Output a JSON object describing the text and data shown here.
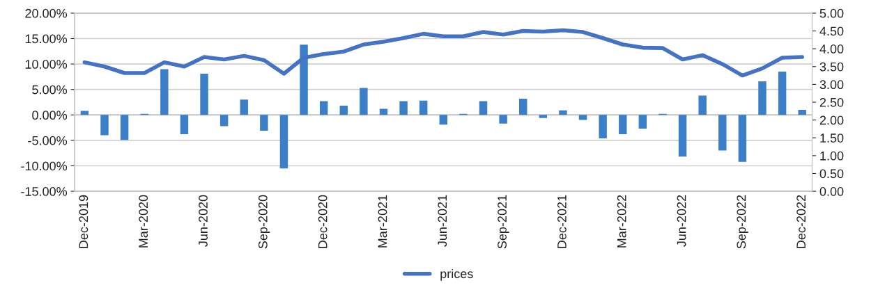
{
  "chart_data": {
    "type": "bar",
    "categories": [
      "Dec-2019",
      null,
      null,
      "Mar-2020",
      null,
      null,
      "Jun-2020",
      null,
      null,
      "Sep-2020",
      null,
      null,
      "Dec-2020",
      null,
      null,
      "Mar-2021",
      null,
      null,
      "Jun-2021",
      null,
      null,
      "Sep-2021",
      null,
      null,
      "Dec-2021",
      null,
      null,
      "Mar-2022",
      null,
      null,
      "Jun-2022",
      null,
      null,
      "Sep-2022",
      null,
      null,
      "Dec-2022"
    ],
    "series": [
      {
        "color": "#3a7fc8",
        "values": [
          0.8,
          -4.0,
          -4.9,
          0.2,
          9.0,
          -3.8,
          8.1,
          -2.2,
          3.0,
          -3.1,
          -10.5,
          13.8,
          2.7,
          1.8,
          5.3,
          1.2,
          2.7,
          2.8,
          -1.9,
          0.2,
          2.7,
          -1.7,
          3.2,
          -0.6,
          0.9,
          -1.0,
          -4.6,
          -3.8,
          -2.7,
          0.2,
          -8.2,
          3.8,
          -7.0,
          -9.2,
          6.6,
          8.5,
          1.0
        ]
      },
      {
        "type": "line",
        "name": "prices",
        "color": "#4472c4",
        "axis": "y2",
        "values": [
          3.62,
          3.5,
          3.32,
          3.32,
          3.62,
          3.5,
          3.77,
          3.7,
          3.8,
          3.68,
          3.3,
          3.75,
          3.85,
          3.92,
          4.12,
          4.2,
          4.3,
          4.42,
          4.35,
          4.35,
          4.47,
          4.4,
          4.5,
          4.48,
          4.52,
          4.47,
          4.3,
          4.12,
          4.03,
          4.02,
          3.7,
          3.82,
          3.57,
          3.25,
          3.45,
          3.75,
          3.77
        ]
      }
    ],
    "ylim": [
      -15,
      20
    ],
    "yticks": [
      {
        "value": -15,
        "label": "-15.00%"
      },
      {
        "value": -10,
        "label": "-10.00%"
      },
      {
        "value": -5,
        "label": "-5.00%"
      },
      {
        "value": 0,
        "label": "0.00%"
      },
      {
        "value": 5,
        "label": "5.00%"
      },
      {
        "value": 10,
        "label": "10.00%"
      },
      {
        "value": 15,
        "label": "15.00%"
      },
      {
        "value": 20,
        "label": "20.00%"
      }
    ],
    "y2lim": [
      0,
      5
    ],
    "y2ticks": [
      {
        "value": 0,
        "label": "0.00"
      },
      {
        "value": 0.5,
        "label": "0.50"
      },
      {
        "value": 1,
        "label": "1.00"
      },
      {
        "value": 1.5,
        "label": "1.50"
      },
      {
        "value": 2,
        "label": "2.00"
      },
      {
        "value": 2.5,
        "label": "2.50"
      },
      {
        "value": 3,
        "label": "3.00"
      },
      {
        "value": 3.5,
        "label": "3.50"
      },
      {
        "value": 4,
        "label": "4.00"
      },
      {
        "value": 4.5,
        "label": "4.50"
      },
      {
        "value": 5,
        "label": "5.00"
      }
    ],
    "grid": "y",
    "legend": "bottom"
  }
}
